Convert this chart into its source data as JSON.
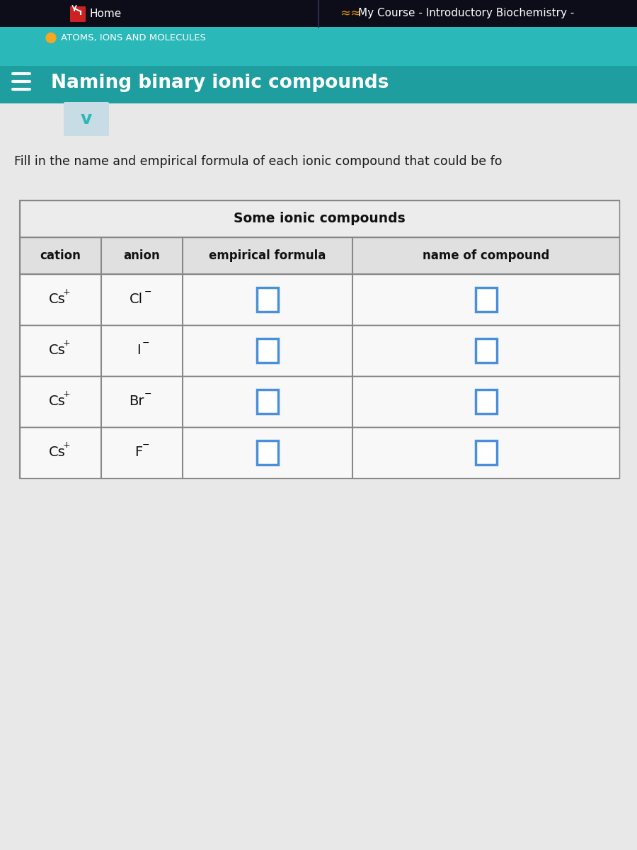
{
  "nav_bar_color": "#0d0d1a",
  "teal_top_color": "#2ab8b8",
  "teal_bottom_color": "#1e9e9e",
  "page_bg": "#e8e8e8",
  "table_bg": "#f8f8f8",
  "table_border": "#888888",
  "col_header_bg": "#e0e0e0",
  "title_row_bg": "#ececec",
  "row_bg": "#f8f8f8",
  "header_text": "ATOMS, IONS AND MOLECULES",
  "title_text": "Naming binary ionic compounds",
  "subtitle_text": "Fill in the name and empirical formula of each ionic compound that could be fo",
  "table_title": "Some ionic compounds",
  "col_headers": [
    "cation",
    "anion",
    "empirical formula",
    "name of compound"
  ],
  "cations": [
    "Cs",
    "Cs",
    "Cs",
    "Cs"
  ],
  "anions": [
    "Cl",
    "I",
    "Br",
    "F"
  ],
  "nav_home": "Home",
  "nav_course": "My Course - Introductory Biochemistry -",
  "input_box_color": "#4a90d9",
  "orange_dot": "#f5a623",
  "home_icon_color": "#cc2222",
  "chevron_bg": "#c8dce6",
  "chevron_color": "#2ab8b8",
  "nav_divider_color": "#2a2a4a",
  "hamburger_color": "#ffffff"
}
